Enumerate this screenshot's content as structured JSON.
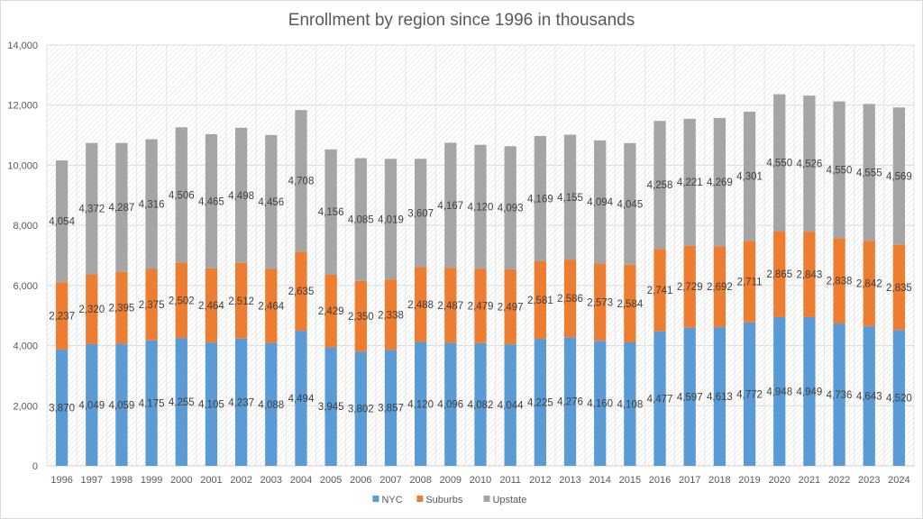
{
  "chart_data": {
    "type": "bar",
    "stacked": true,
    "title": "Enrollment by region since 1996 in thousands",
    "xlabel": "",
    "ylabel": "",
    "ylim": [
      0,
      14000
    ],
    "yticks": [
      0,
      2000,
      4000,
      6000,
      8000,
      10000,
      12000,
      14000
    ],
    "ytick_labels": [
      "0",
      "2,000",
      "4,000",
      "6,000",
      "8,000",
      "10,000",
      "12,000",
      "14,000"
    ],
    "grid": true,
    "legend_position": "bottom",
    "categories": [
      "1996",
      "1997",
      "1998",
      "1999",
      "2000",
      "2001",
      "2002",
      "2003",
      "2004",
      "2005",
      "2006",
      "2007",
      "2008",
      "2009",
      "2010",
      "2011",
      "2012",
      "2013",
      "2014",
      "2015",
      "2016",
      "2017",
      "2018",
      "2019",
      "2020",
      "2021",
      "2022",
      "2023",
      "2024"
    ],
    "series": [
      {
        "name": "NYC",
        "color": "#5b9bd5",
        "values": [
          3870,
          4049,
          4059,
          4175,
          4255,
          4105,
          4237,
          4088,
          4494,
          3945,
          3802,
          3857,
          4120,
          4096,
          4082,
          4044,
          4225,
          4276,
          4160,
          4108,
          4477,
          4597,
          4613,
          4772,
          4948,
          4949,
          4736,
          4643,
          4520
        ]
      },
      {
        "name": "Suburbs",
        "color": "#ed7d31",
        "values": [
          2237,
          2320,
          2395,
          2375,
          2502,
          2464,
          2512,
          2464,
          2635,
          2429,
          2350,
          2338,
          2488,
          2487,
          2479,
          2497,
          2581,
          2586,
          2573,
          2584,
          2741,
          2729,
          2692,
          2711,
          2865,
          2843,
          2838,
          2842,
          2835
        ]
      },
      {
        "name": "Upstate",
        "color": "#a5a5a5",
        "values": [
          4054,
          4372,
          4287,
          4316,
          4506,
          4465,
          4498,
          4456,
          4708,
          4156,
          4085,
          4019,
          3607,
          4167,
          4120,
          4093,
          4169,
          4155,
          4094,
          4045,
          4258,
          4221,
          4269,
          4301,
          4550,
          4526,
          4550,
          4555,
          4569
        ]
      }
    ]
  }
}
